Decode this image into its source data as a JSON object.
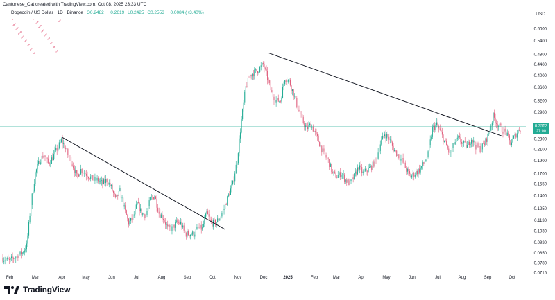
{
  "header": {
    "credit": "Cantonese_Cat created with TradingView.com, Oct 08, 2025 23:33 UTC",
    "symbol": "Dogecoin / US Dollar · 1D · Binance",
    "open": "O0.2482",
    "high": "H0.2619",
    "low": "L0.2425",
    "close": "C0.2553",
    "change": "+0.0084 (+3.40%)"
  },
  "footer": {
    "brand": "TradingView"
  },
  "colors": {
    "up": "#22ab94",
    "down": "#e0607e",
    "price_line": "#22ab94",
    "trendline": "#131722"
  },
  "chart_data": {
    "type": "candlestick",
    "title": "Dogecoin / US Dollar · 1D · Binance",
    "y_unit": "USD",
    "y_scale": "log",
    "ylim": [
      0.072,
      0.65
    ],
    "y_ticks": [
      0.6,
      0.54,
      0.48,
      0.44,
      0.4,
      0.36,
      0.32,
      0.29,
      0.26,
      0.23,
      0.21,
      0.19,
      0.17,
      0.155,
      0.14,
      0.125,
      0.113,
      0.103,
      0.093,
      0.085,
      0.078,
      0.0715
    ],
    "y_tick_labels": [
      "0.6000",
      "0.5400",
      "0.4800",
      "0.4400",
      "0.4000",
      "0.3600",
      "0.3200",
      "0.2900",
      "0.2600",
      "0.2300",
      "0.2100",
      "0.1900",
      "0.1700",
      "0.1550",
      "0.1400",
      "0.1250",
      "0.1130",
      "0.1030",
      "0.0930",
      "0.0850",
      "0.0780",
      "0.0715"
    ],
    "x_tick_labels": [
      "Feb",
      "Mar",
      "Apr",
      "May",
      "Jun",
      "Jul",
      "Aug",
      "Sep",
      "Oct",
      "Nov",
      "Dec",
      "2025",
      "Feb",
      "Mar",
      "Apr",
      "May",
      "Jun",
      "Jul",
      "Aug",
      "Sep",
      "Oct"
    ],
    "anchors": [
      [
        0,
        0.081
      ],
      [
        6,
        0.079
      ],
      [
        12,
        0.082
      ],
      [
        18,
        0.085
      ],
      [
        22,
        0.09
      ],
      [
        26,
        0.13
      ],
      [
        30,
        0.17
      ],
      [
        34,
        0.19
      ],
      [
        38,
        0.2
      ],
      [
        42,
        0.185
      ],
      [
        46,
        0.195
      ],
      [
        50,
        0.21
      ],
      [
        54,
        0.225
      ],
      [
        57,
        0.215
      ],
      [
        60,
        0.2
      ],
      [
        64,
        0.185
      ],
      [
        68,
        0.165
      ],
      [
        72,
        0.175
      ],
      [
        76,
        0.17
      ],
      [
        80,
        0.165
      ],
      [
        84,
        0.16
      ],
      [
        88,
        0.16
      ],
      [
        92,
        0.155
      ],
      [
        96,
        0.16
      ],
      [
        100,
        0.15
      ],
      [
        104,
        0.135
      ],
      [
        108,
        0.145
      ],
      [
        112,
        0.125
      ],
      [
        116,
        0.11
      ],
      [
        120,
        0.115
      ],
      [
        124,
        0.13
      ],
      [
        128,
        0.12
      ],
      [
        132,
        0.118
      ],
      [
        136,
        0.135
      ],
      [
        140,
        0.14
      ],
      [
        144,
        0.12
      ],
      [
        148,
        0.115
      ],
      [
        152,
        0.105
      ],
      [
        156,
        0.105
      ],
      [
        160,
        0.11
      ],
      [
        164,
        0.11
      ],
      [
        168,
        0.1
      ],
      [
        172,
        0.1
      ],
      [
        176,
        0.1
      ],
      [
        180,
        0.105
      ],
      [
        184,
        0.105
      ],
      [
        188,
        0.12
      ],
      [
        192,
        0.11
      ],
      [
        196,
        0.11
      ],
      [
        200,
        0.115
      ],
      [
        204,
        0.125
      ],
      [
        208,
        0.14
      ],
      [
        212,
        0.155
      ],
      [
        216,
        0.19
      ],
      [
        220,
        0.27
      ],
      [
        224,
        0.36
      ],
      [
        228,
        0.4
      ],
      [
        232,
        0.41
      ],
      [
        236,
        0.42
      ],
      [
        240,
        0.44
      ],
      [
        244,
        0.39
      ],
      [
        248,
        0.34
      ],
      [
        252,
        0.32
      ],
      [
        256,
        0.32
      ],
      [
        260,
        0.39
      ],
      [
        264,
        0.38
      ],
      [
        268,
        0.34
      ],
      [
        272,
        0.3
      ],
      [
        276,
        0.27
      ],
      [
        280,
        0.25
      ],
      [
        284,
        0.26
      ],
      [
        288,
        0.24
      ],
      [
        292,
        0.22
      ],
      [
        296,
        0.2
      ],
      [
        300,
        0.19
      ],
      [
        304,
        0.17
      ],
      [
        308,
        0.165
      ],
      [
        312,
        0.17
      ],
      [
        316,
        0.16
      ],
      [
        320,
        0.155
      ],
      [
        324,
        0.165
      ],
      [
        328,
        0.18
      ],
      [
        332,
        0.17
      ],
      [
        336,
        0.175
      ],
      [
        340,
        0.18
      ],
      [
        344,
        0.19
      ],
      [
        348,
        0.22
      ],
      [
        352,
        0.24
      ],
      [
        356,
        0.23
      ],
      [
        360,
        0.21
      ],
      [
        364,
        0.2
      ],
      [
        368,
        0.19
      ],
      [
        372,
        0.175
      ],
      [
        376,
        0.165
      ],
      [
        380,
        0.17
      ],
      [
        384,
        0.175
      ],
      [
        388,
        0.185
      ],
      [
        392,
        0.2
      ],
      [
        396,
        0.25
      ],
      [
        400,
        0.26
      ],
      [
        404,
        0.24
      ],
      [
        408,
        0.22
      ],
      [
        412,
        0.2
      ],
      [
        416,
        0.22
      ],
      [
        420,
        0.23
      ],
      [
        424,
        0.22
      ],
      [
        428,
        0.215
      ],
      [
        432,
        0.23
      ],
      [
        436,
        0.215
      ],
      [
        440,
        0.21
      ],
      [
        444,
        0.22
      ],
      [
        448,
        0.24
      ],
      [
        452,
        0.28
      ],
      [
        456,
        0.26
      ],
      [
        460,
        0.25
      ],
      [
        464,
        0.24
      ],
      [
        468,
        0.22
      ],
      [
        472,
        0.235
      ],
      [
        476,
        0.25
      ]
    ],
    "trendlines": [
      {
        "from": [
          55,
          0.232
        ],
        "to": [
          205,
          0.104
        ]
      },
      {
        "from": [
          245,
          0.485
        ],
        "to": [
          460,
          0.235
        ]
      }
    ],
    "last_price": 0.2553,
    "last_price_label": "0.2553",
    "countdown": "27:00",
    "bars": 478
  }
}
